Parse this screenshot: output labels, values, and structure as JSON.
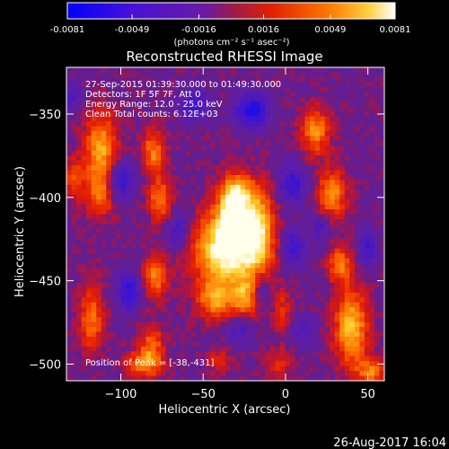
{
  "colorbar": {
    "ticks": [
      "-0.0081",
      "-0.0049",
      "-0.0016",
      "0.0016",
      "0.0049",
      "0.0081"
    ],
    "range": [
      -0.0081,
      0.0081
    ],
    "units": "(photons cm⁻² s⁻¹ asec⁻²)"
  },
  "chart_data": {
    "type": "heatmap",
    "title": "Reconstructed RHESSI Image",
    "xlabel": "Heliocentric X (arcsec)",
    "ylabel": "Heliocentric Y (arcsec)",
    "xlim": [
      -133,
      60
    ],
    "ylim": [
      -510,
      -322
    ],
    "xticks": [
      -100,
      -50,
      0,
      50
    ],
    "yticks": [
      -350,
      -400,
      -450,
      -500
    ],
    "xtick_labels": [
      "−100",
      "−50",
      "0",
      "50"
    ],
    "ytick_labels": [
      "−350",
      "−400",
      "−450",
      "−500"
    ],
    "peak": [
      -38,
      -431
    ],
    "annotations": {
      "time": "27-Sep-2015 01:39:30.000 to 01:49:30.000",
      "detectors": "Detectors: 1F 5F 7F, Att 0",
      "energy": "Energy Range: 12.0 - 25.0 keV",
      "clean": "Clean     Total counts: 6.12E+03",
      "peak_label": "Position of Peak = [-38,-431]"
    },
    "colors": {
      "negative": "#0000ff",
      "zero": "#5a1fa0",
      "positive_mid": "#ff5500",
      "positive_max": "#ffffe0"
    }
  },
  "footer": {
    "timestamp": "26-Aug-2017 16:04"
  }
}
